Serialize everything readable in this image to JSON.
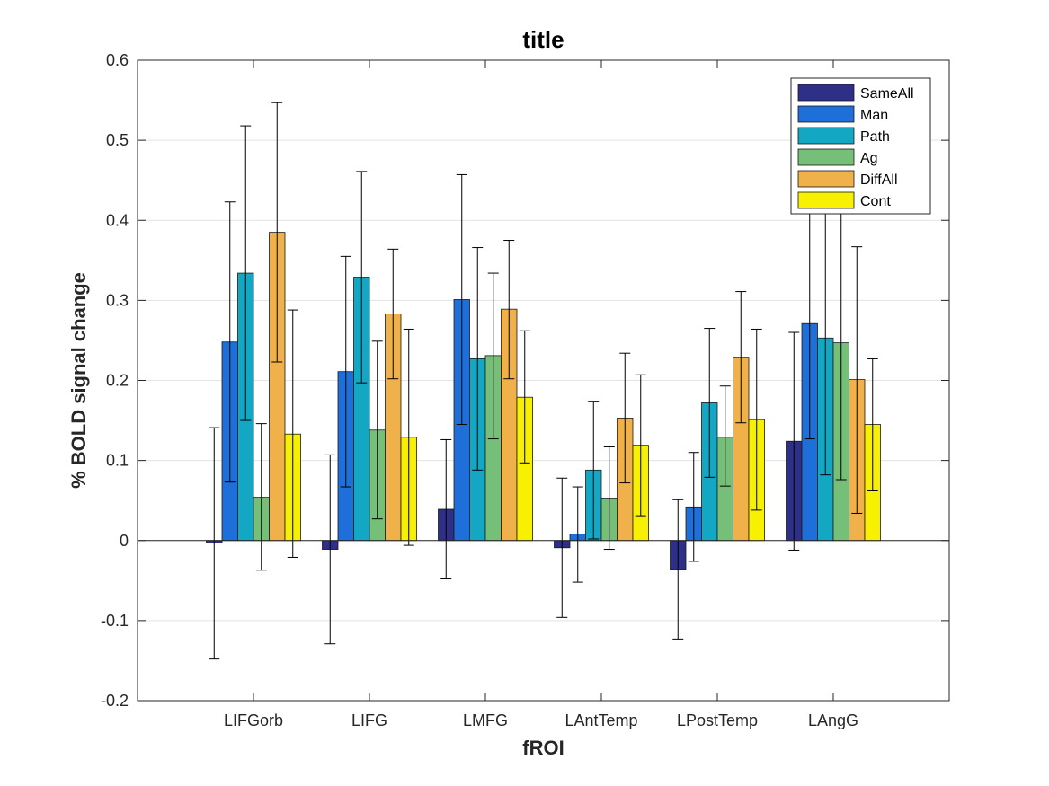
{
  "chart_data": {
    "type": "bar",
    "title": "title",
    "xlabel": "fROI",
    "ylabel": "% BOLD signal change",
    "ylim": [
      -0.2,
      0.6
    ],
    "yticks": [
      "-0.2",
      "-0.1",
      "0",
      "0.1",
      "0.2",
      "0.3",
      "0.4",
      "0.5",
      "0.6"
    ],
    "grid": "horizontal",
    "legend_position": "top-right",
    "categories": [
      "LIFGorb",
      "LIFG",
      "LMFG",
      "LAntTemp",
      "LPostTemp",
      "LAngG"
    ],
    "series": [
      {
        "name": "SameAll",
        "color": "#2e2f86",
        "values": [
          -0.003,
          -0.011,
          0.039,
          -0.009,
          -0.036,
          0.124
        ],
        "error_low": [
          -0.148,
          -0.129,
          -0.048,
          -0.096,
          -0.123,
          -0.012
        ],
        "error_high": [
          0.141,
          0.107,
          0.126,
          0.078,
          0.051,
          0.26
        ]
      },
      {
        "name": "Man",
        "color": "#1e6fd9",
        "values": [
          0.248,
          0.211,
          0.301,
          0.008,
          0.042,
          0.271
        ],
        "error_low": [
          0.073,
          0.067,
          0.145,
          -0.052,
          -0.026,
          0.127
        ],
        "error_high": [
          0.423,
          0.355,
          0.457,
          0.067,
          0.11,
          0.415
        ]
      },
      {
        "name": "Path",
        "color": "#14a7c4",
        "values": [
          0.334,
          0.329,
          0.227,
          0.088,
          0.172,
          0.253
        ],
        "error_low": [
          0.15,
          0.197,
          0.088,
          0.002,
          0.079,
          0.082
        ],
        "error_high": [
          0.518,
          0.461,
          0.366,
          0.174,
          0.265,
          0.424
        ]
      },
      {
        "name": "Ag",
        "color": "#76bf79",
        "values": [
          0.054,
          0.138,
          0.231,
          0.053,
          0.129,
          0.247
        ],
        "error_low": [
          -0.037,
          0.027,
          0.127,
          -0.011,
          0.068,
          0.076
        ],
        "error_high": [
          0.146,
          0.249,
          0.334,
          0.117,
          0.193,
          0.418
        ]
      },
      {
        "name": "DiffAll",
        "color": "#f0b14a",
        "values": [
          0.385,
          0.283,
          0.289,
          0.153,
          0.229,
          0.201
        ],
        "error_low": [
          0.223,
          0.202,
          0.202,
          0.072,
          0.147,
          0.034
        ],
        "error_high": [
          0.547,
          0.364,
          0.375,
          0.234,
          0.311,
          0.367
        ]
      },
      {
        "name": "Cont",
        "color": "#f7f000",
        "values": [
          0.133,
          0.129,
          0.179,
          0.119,
          0.151,
          0.145
        ],
        "error_low": [
          -0.021,
          -0.006,
          0.097,
          0.031,
          0.038,
          0.062
        ],
        "error_high": [
          0.288,
          0.264,
          0.262,
          0.207,
          0.264,
          0.227
        ]
      }
    ]
  }
}
